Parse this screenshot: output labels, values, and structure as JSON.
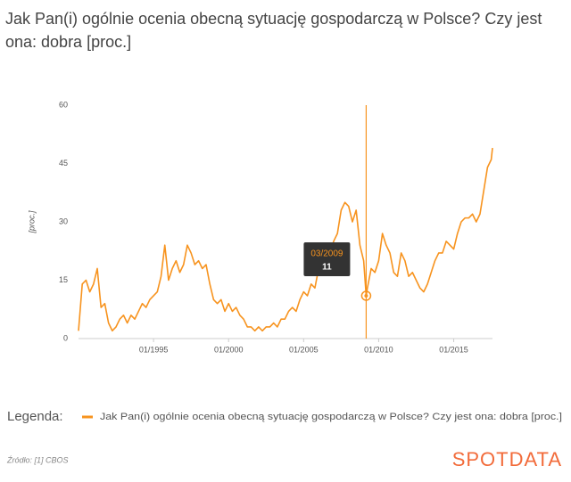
{
  "chart_data": {
    "type": "line",
    "title": "Jak Pan(i) ogólnie ocenia obecną sytuację gospodarczą w Polsce? Czy jest ona: dobra [proc.]",
    "y_label": "[proc.]",
    "legend_title": "Legenda:",
    "source": "Źródło: [1] CBOS",
    "logo": "SPOTDATA",
    "x": [
      "01/1990",
      "04/1990",
      "07/1990",
      "10/1990",
      "01/1991",
      "04/1991",
      "07/1991",
      "10/1991",
      "01/1992",
      "04/1992",
      "07/1992",
      "10/1992",
      "01/1993",
      "04/1993",
      "07/1993",
      "10/1993",
      "01/1994",
      "04/1994",
      "07/1994",
      "10/1994",
      "01/1995",
      "04/1995",
      "07/1995",
      "10/1995",
      "01/1996",
      "04/1996",
      "07/1996",
      "10/1996",
      "01/1997",
      "04/1997",
      "07/1997",
      "10/1997",
      "01/1998",
      "04/1998",
      "07/1998",
      "10/1998",
      "01/1999",
      "04/1999",
      "07/1999",
      "10/1999",
      "01/2000",
      "04/2000",
      "07/2000",
      "10/2000",
      "01/2001",
      "04/2001",
      "07/2001",
      "10/2001",
      "01/2002",
      "04/2002",
      "07/2002",
      "10/2002",
      "01/2003",
      "04/2003",
      "07/2003",
      "10/2003",
      "01/2004",
      "04/2004",
      "07/2004",
      "10/2004",
      "01/2005",
      "04/2005",
      "07/2005",
      "10/2005",
      "01/2006",
      "04/2006",
      "07/2006",
      "10/2006",
      "01/2007",
      "04/2007",
      "07/2007",
      "10/2007",
      "01/2008",
      "04/2008",
      "07/2008",
      "10/2008",
      "01/2009",
      "03/2009",
      "04/2009",
      "07/2009",
      "10/2009",
      "01/2010",
      "04/2010",
      "07/2010",
      "10/2010",
      "01/2011",
      "04/2011",
      "07/2011",
      "10/2011",
      "01/2012",
      "04/2012",
      "07/2012",
      "10/2012",
      "01/2013",
      "04/2013",
      "07/2013",
      "10/2013",
      "01/2014",
      "04/2014",
      "07/2014",
      "10/2014",
      "01/2015",
      "04/2015",
      "07/2015",
      "10/2015",
      "01/2016",
      "04/2016",
      "07/2016",
      "10/2016",
      "01/2017",
      "04/2017",
      "07/2017",
      "08/2017"
    ],
    "series": [
      {
        "name": "Jak Pan(i) ogólnie ocenia obecną sytuację gospodarczą w Polsce? Czy jest ona: dobra [proc.]",
        "color": "#f7931e",
        "values": [
          2,
          14,
          15,
          12,
          14,
          18,
          8,
          9,
          4,
          2,
          3,
          5,
          6,
          4,
          6,
          5,
          7,
          9,
          8,
          10,
          11,
          12,
          16,
          24,
          15,
          18,
          20,
          17,
          19,
          24,
          22,
          19,
          20,
          18,
          19,
          14,
          10,
          9,
          10,
          7,
          9,
          7,
          8,
          6,
          5,
          3,
          3,
          2,
          3,
          2,
          3,
          3,
          4,
          3,
          5,
          5,
          7,
          8,
          7,
          10,
          12,
          11,
          14,
          13,
          18,
          17,
          20,
          22,
          25,
          27,
          33,
          35,
          34,
          30,
          33,
          24,
          20,
          11,
          13,
          18,
          17,
          20,
          27,
          24,
          22,
          17,
          16,
          22,
          20,
          16,
          17,
          15,
          13,
          12,
          14,
          17,
          20,
          22,
          22,
          25,
          24,
          23,
          27,
          30,
          31,
          31,
          32,
          30,
          32,
          38,
          44,
          46,
          49
        ]
      }
    ],
    "xlim": [
      "01/1990",
      "08/2017"
    ],
    "xticks": [
      "01/1995",
      "01/2000",
      "01/2005",
      "01/2010",
      "01/2015"
    ],
    "ylim": [
      0,
      60
    ],
    "yticks": [
      0,
      15,
      30,
      45,
      60
    ],
    "tooltip": {
      "x": "03/2009",
      "value": 11
    }
  }
}
